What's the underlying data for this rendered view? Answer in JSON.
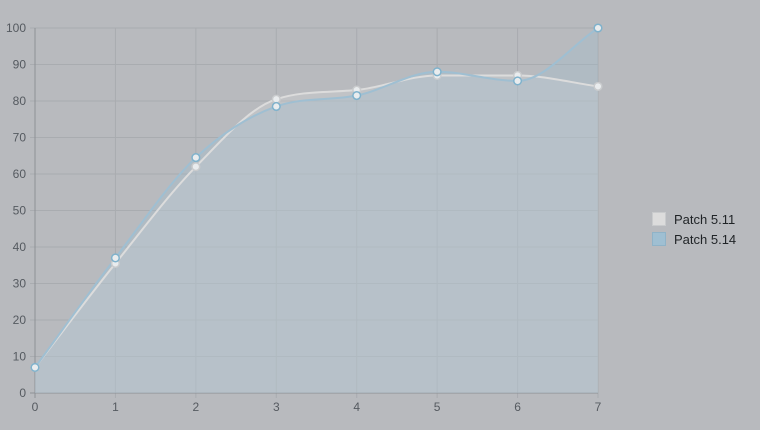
{
  "chart_data": {
    "type": "area",
    "x": [
      0,
      1,
      2,
      3,
      4,
      5,
      6,
      7
    ],
    "xlim": [
      0,
      7
    ],
    "ylim": [
      0,
      100
    ],
    "yticks": [
      0,
      10,
      20,
      30,
      40,
      50,
      60,
      70,
      80,
      90,
      100
    ],
    "xticks": [
      0,
      1,
      2,
      3,
      4,
      5,
      6,
      7
    ],
    "grid": true,
    "legend_position": "right",
    "series": [
      {
        "name": "Patch 5.11",
        "values": [
          7,
          35.5,
          62,
          80.5,
          83,
          87,
          87,
          84
        ],
        "color": "#dcdcdc"
      },
      {
        "name": "Patch 5.14",
        "values": [
          7,
          37,
          64.5,
          78.5,
          81.5,
          88,
          85.5,
          100
        ],
        "color": "#9fbfd2"
      }
    ]
  }
}
